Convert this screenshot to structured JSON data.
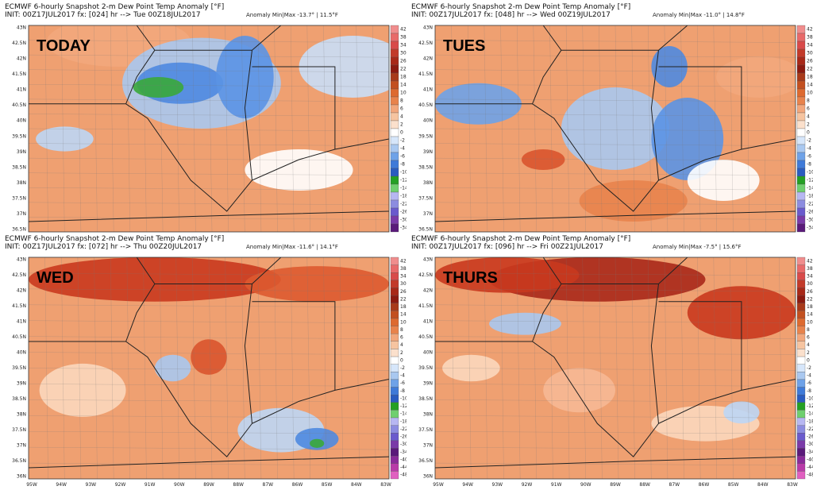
{
  "panels": [
    {
      "label": "TODAY",
      "title": "ECMWF 6-hourly Snapshot 2-m Dew Point Temp Anomaly [°F]",
      "init": "INIT: 00Z17JUL2017 fx: [024] hr --> Tue 00Z18JUL2017",
      "anomaly": "Anomaly Min|Max -13.7° | 11.5°F",
      "lat_labels": [
        "43N",
        "42.5N",
        "42N",
        "41.5N",
        "41N",
        "40.5N",
        "40N",
        "39.5N",
        "39N",
        "38.5N",
        "38N",
        "37.5N",
        "37N",
        "36.5N"
      ],
      "colorbar": [
        "42",
        "38",
        "34",
        "30",
        "26",
        "22",
        "18",
        "14",
        "10",
        "8",
        "6",
        "4",
        "2",
        "0",
        "-2",
        "-4",
        "-6",
        "-8",
        "-10",
        "-12",
        "-14",
        "-18",
        "-22",
        "-26",
        "-30",
        "-34"
      ]
    },
    {
      "label": "TUES",
      "title": "ECMWF 6-hourly Snapshot 2-m Dew Point Temp Anomaly [°F]",
      "init": "INIT: 00Z17JUL2017 fx: [048] hr --> Wed 00Z19JUL2017",
      "anomaly": "Anomaly Min|Max -11.0° | 14.8°F",
      "lat_labels": [
        "43N",
        "42.5N",
        "42N",
        "41.5N",
        "41N",
        "40.5N",
        "40N",
        "39.5N",
        "39N",
        "38.5N",
        "38N",
        "37.5N",
        "37N",
        "36.5N"
      ],
      "colorbar": [
        "42",
        "38",
        "34",
        "30",
        "26",
        "22",
        "18",
        "14",
        "10",
        "8",
        "6",
        "4",
        "2",
        "0",
        "-2",
        "-4",
        "-6",
        "-8",
        "-10",
        "-12",
        "-14",
        "-18",
        "-22",
        "-26",
        "-30",
        "-34"
      ]
    },
    {
      "label": "WED",
      "title": "ECMWF 6-hourly Snapshot 2-m Dew Point Temp Anomaly [°F]",
      "init": "INIT: 00Z17JUL2017 fx: [072] hr --> Thu 00Z20JUL2017",
      "anomaly": "Anomaly Min|Max -11.6° | 14.1°F",
      "lat_labels": [
        "43N",
        "42.5N",
        "42N",
        "41.5N",
        "41N",
        "40.5N",
        "40N",
        "39.5N",
        "39N",
        "38.5N",
        "38N",
        "37.5N",
        "37N",
        "36.5N",
        "36N"
      ],
      "lon_labels": [
        "95W",
        "94W",
        "93W",
        "92W",
        "91W",
        "90W",
        "89W",
        "88W",
        "87W",
        "86W",
        "85W",
        "84W",
        "83W"
      ],
      "colorbar": [
        "42",
        "38",
        "34",
        "30",
        "26",
        "22",
        "18",
        "14",
        "10",
        "8",
        "6",
        "4",
        "2",
        "0",
        "-2",
        "-4",
        "-6",
        "-8",
        "-10",
        "-12",
        "-14",
        "-18",
        "-22",
        "-26",
        "-30",
        "-34",
        "-40",
        "-44",
        "-48"
      ]
    },
    {
      "label": "THURS",
      "title": "ECMWF 6-hourly Snapshot 2-m Dew Point Temp Anomaly [°F]",
      "init": "INIT: 00Z17JUL2017 fx: [096] hr --> Fri 00Z21JUL2017",
      "anomaly": "Anomaly Min|Max -7.5° | 15.6°F",
      "lat_labels": [
        "43N",
        "42.5N",
        "42N",
        "41.5N",
        "41N",
        "40.5N",
        "40N",
        "39.5N",
        "39N",
        "38.5N",
        "38N",
        "37.5N",
        "37N",
        "36.5N",
        "36N"
      ],
      "lon_labels": [
        "95W",
        "94W",
        "93W",
        "92W",
        "91W",
        "90W",
        "89W",
        "88W",
        "87W",
        "86W",
        "85W",
        "84W",
        "83W"
      ],
      "colorbar": [
        "42",
        "38",
        "34",
        "30",
        "26",
        "22",
        "18",
        "14",
        "10",
        "8",
        "6",
        "4",
        "2",
        "0",
        "-2",
        "-4",
        "-6",
        "-8",
        "-10",
        "-12",
        "-14",
        "-18",
        "-22",
        "-26",
        "-30",
        "-34",
        "-40",
        "-44",
        "-48"
      ]
    }
  ]
}
